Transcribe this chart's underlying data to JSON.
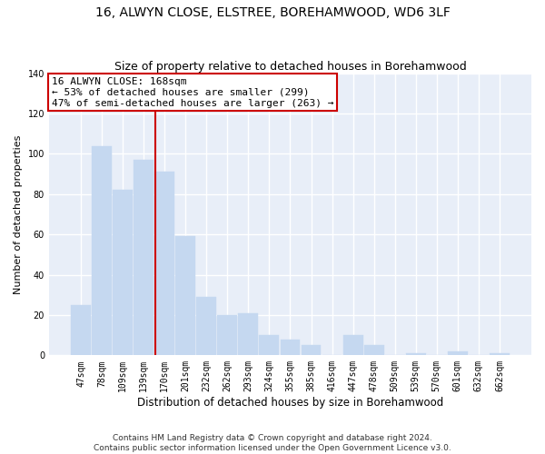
{
  "title": "16, ALWYN CLOSE, ELSTREE, BOREHAMWOOD, WD6 3LF",
  "subtitle": "Size of property relative to detached houses in Borehamwood",
  "xlabel": "Distribution of detached houses by size in Borehamwood",
  "ylabel": "Number of detached properties",
  "categories": [
    "47sqm",
    "78sqm",
    "109sqm",
    "139sqm",
    "170sqm",
    "201sqm",
    "232sqm",
    "262sqm",
    "293sqm",
    "324sqm",
    "355sqm",
    "385sqm",
    "416sqm",
    "447sqm",
    "478sqm",
    "509sqm",
    "539sqm",
    "570sqm",
    "601sqm",
    "632sqm",
    "662sqm"
  ],
  "values": [
    25,
    104,
    82,
    97,
    91,
    59,
    29,
    20,
    21,
    10,
    8,
    5,
    0,
    10,
    5,
    0,
    1,
    0,
    2,
    0,
    1
  ],
  "bar_color": "#c5d8f0",
  "bar_edge_color": "#c5d8f0",
  "vline_color": "#cc0000",
  "annotation_text": "16 ALWYN CLOSE: 168sqm\n← 53% of detached houses are smaller (299)\n47% of semi-detached houses are larger (263) →",
  "annotation_box_color": "#ffffff",
  "annotation_box_edge_color": "#cc0000",
  "ylim": [
    0,
    140
  ],
  "yticks": [
    0,
    20,
    40,
    60,
    80,
    100,
    120,
    140
  ],
  "bg_color": "#e8eef8",
  "grid_color": "#ffffff",
  "footer_text": "Contains HM Land Registry data © Crown copyright and database right 2024.\nContains public sector information licensed under the Open Government Licence v3.0.",
  "title_fontsize": 10,
  "subtitle_fontsize": 9,
  "xlabel_fontsize": 8.5,
  "ylabel_fontsize": 8,
  "tick_fontsize": 7,
  "annotation_fontsize": 8,
  "footer_fontsize": 6.5,
  "fig_width": 6.0,
  "fig_height": 5.0,
  "dpi": 100
}
